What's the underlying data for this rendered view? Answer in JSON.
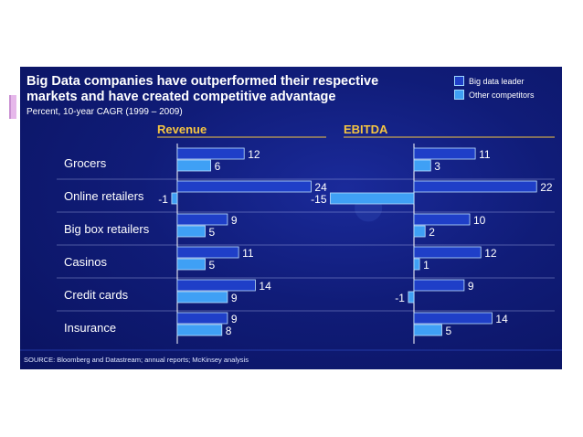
{
  "chart_data": {
    "type": "bar",
    "title": "Big Data companies have outperformed their respective markets and have created competitive advantage",
    "subtitle": "Percent, 10-year CAGR (1999 – 2009)",
    "categories": [
      "Grocers",
      "Online retailers",
      "Big box retailers",
      "Casinos",
      "Credit cards",
      "Insurance"
    ],
    "panels": [
      {
        "name": "Revenue",
        "series": [
          {
            "name": "Big data leader",
            "values": [
              12,
              24,
              9,
              11,
              14,
              9
            ]
          },
          {
            "name": "Other competitors",
            "values": [
              6,
              -1,
              5,
              5,
              9,
              8
            ]
          }
        ]
      },
      {
        "name": "EBITDA",
        "series": [
          {
            "name": "Big data leader",
            "values": [
              11,
              22,
              10,
              12,
              9,
              14
            ]
          },
          {
            "name": "Other competitors",
            "values": [
              3,
              -15,
              2,
              1,
              -1,
              5
            ]
          }
        ]
      }
    ],
    "legend": [
      "Big data leader",
      "Other competitors"
    ],
    "legend_position": "top-right",
    "source": "SOURCE: Bloomberg and Datastream; annual reports; McKinsey analysis"
  },
  "colors": {
    "leader": "#1f3fc8",
    "other": "#3fa0f5",
    "panel_header": "#f5c542",
    "text": "#ffffff",
    "grid": "#c8d2ff"
  }
}
